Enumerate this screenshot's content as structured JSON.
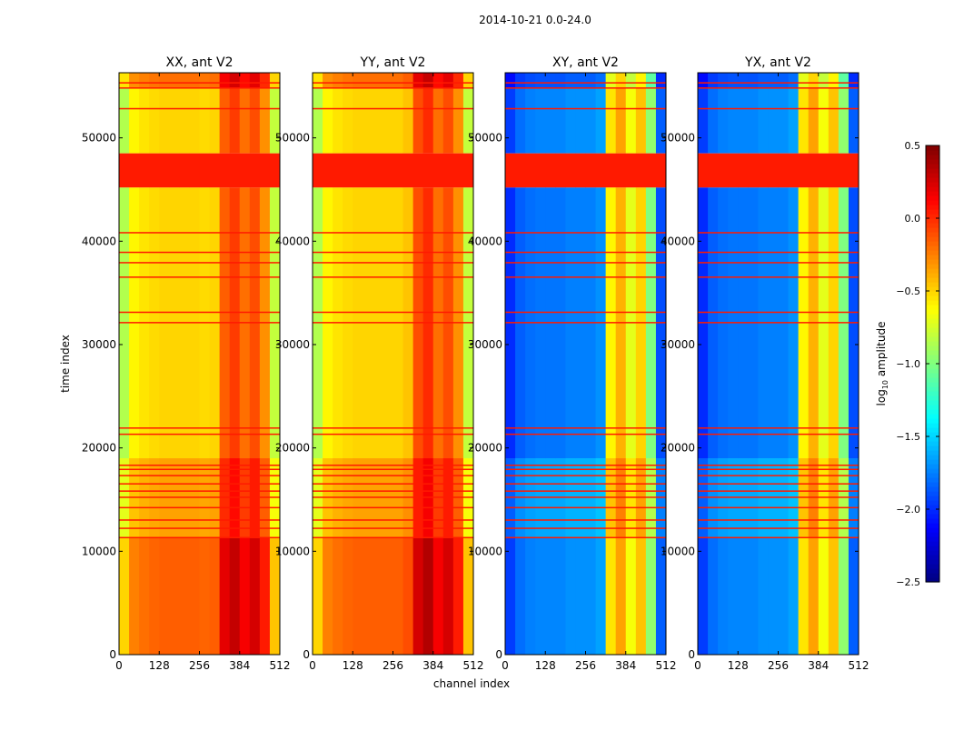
{
  "chart_data": {
    "type": "heatmap",
    "title": "2014-10-21 0.0-24.0",
    "xlabel": "channel index",
    "ylabel": "time index",
    "xlim": [
      0,
      512
    ],
    "ylim": [
      0,
      56300
    ],
    "xticks": [
      0,
      128,
      256,
      384,
      512
    ],
    "yticks": [
      0,
      10000,
      20000,
      30000,
      40000,
      50000
    ],
    "colorbar": {
      "label": "log10 amplitude",
      "label_base": "log",
      "label_sub": "10",
      "label_rest": " amplitude",
      "colormap": "jet",
      "range": [
        -2.5,
        0.5
      ],
      "ticks": [
        "0.5",
        "0.0",
        "−0.5",
        "−1.0",
        "−1.5",
        "−2.0",
        "−2.5"
      ],
      "tick_values": [
        0.5,
        0.0,
        -0.5,
        -1.0,
        -1.5,
        -2.0,
        -2.5
      ]
    },
    "flagged_band": [
      45200,
      48500
    ],
    "flag_value": 0.05,
    "time_segments": [
      {
        "from": 0,
        "to": 11300,
        "offset_auto": 0.35,
        "offset_cross": 0.05
      },
      {
        "from": 11300,
        "to": 19000,
        "offset_auto": 0.15,
        "offset_cross": 0.15
      },
      {
        "from": 19000,
        "to": 45200,
        "offset_auto": 0.0,
        "offset_cross": 0.0
      },
      {
        "from": 48500,
        "to": 54800,
        "offset_auto": 0.0,
        "offset_cross": 0.05
      },
      {
        "from": 54800,
        "to": 56300,
        "offset_auto": 0.3,
        "offset_cross": -0.1
      }
    ],
    "line_times": [
      11300,
      12200,
      13000,
      14200,
      15200,
      15800,
      16500,
      17300,
      17900,
      18300,
      21300,
      21900,
      32100,
      33100,
      36500,
      37900,
      38900,
      40800,
      52800,
      54800,
      55300
    ],
    "panels": [
      {
        "title": "XX, ant V2",
        "kind": "auto",
        "column_profile": [
          -0.85,
          -0.6,
          -0.55,
          -0.52,
          -0.5,
          -0.5,
          -0.5,
          -0.5,
          -0.52,
          -0.5,
          -0.15,
          -0.05,
          -0.2,
          -0.1,
          -0.3,
          -0.8
        ]
      },
      {
        "title": "YY, ant V2",
        "kind": "auto",
        "column_profile": [
          -0.85,
          -0.6,
          -0.55,
          -0.52,
          -0.5,
          -0.5,
          -0.5,
          -0.5,
          -0.5,
          -0.45,
          -0.1,
          0.0,
          -0.2,
          -0.1,
          -0.3,
          -0.8
        ]
      },
      {
        "title": "XY, ant V2",
        "kind": "cross",
        "column_profile": [
          -2.0,
          -1.85,
          -1.8,
          -1.78,
          -1.78,
          -1.78,
          -1.75,
          -1.75,
          -1.75,
          -1.7,
          -0.6,
          -0.4,
          -0.7,
          -0.5,
          -1.0,
          -1.9
        ]
      },
      {
        "title": "YX, ant V2",
        "kind": "cross",
        "column_profile": [
          -2.0,
          -1.85,
          -1.8,
          -1.78,
          -1.78,
          -1.78,
          -1.75,
          -1.75,
          -1.75,
          -1.7,
          -0.6,
          -0.4,
          -0.7,
          -0.5,
          -1.0,
          -1.9
        ]
      }
    ]
  }
}
